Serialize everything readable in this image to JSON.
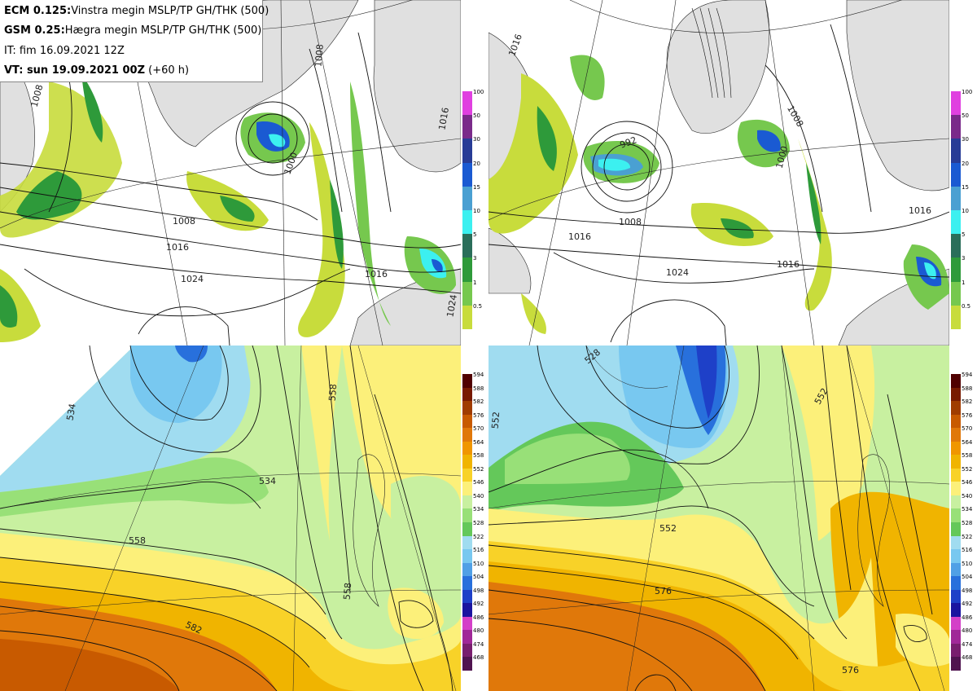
{
  "legend": {
    "line1_model": "ECM 0.125:",
    "line1_text": "Vinstra megin MSLP/TP GH/THK (500)",
    "line2_model": "GSM 0.25:",
    "line2_text": "Hægra megin MSLP/TP GH/THK (500)",
    "line3_text": "IT: fim 16.09.2021 12Z",
    "line4_bold": "VT: sun 19.09.2021 00Z",
    "line4_text": "(+60 h)"
  },
  "colorbars": {
    "precip": {
      "ticks": [
        "100",
        "50",
        "30",
        "20",
        "15",
        "10",
        "5",
        "3",
        "1",
        "0.5"
      ],
      "colors": [
        "#e040e0",
        "#7a2a8a",
        "#283c96",
        "#1a5ad2",
        "#4aa0d2",
        "#3cf0f0",
        "#2a6e5a",
        "#2e9a3a",
        "#76c84e",
        "#c8dc3c"
      ]
    },
    "thickness": {
      "ticks": [
        "594",
        "588",
        "582",
        "576",
        "570",
        "564",
        "558",
        "552",
        "546",
        "540",
        "534",
        "528",
        "522",
        "516",
        "510",
        "504",
        "498",
        "492",
        "486",
        "480",
        "474",
        "468"
      ],
      "colors": [
        "#500000",
        "#781a00",
        "#a03c00",
        "#c85a00",
        "#e0780a",
        "#f09600",
        "#f0b400",
        "#f8d228",
        "#fcf07a",
        "#c8f0a0",
        "#98e078",
        "#64c85a",
        "#a0dcf0",
        "#78c8f0",
        "#50a0e6",
        "#2870dc",
        "#1e40c8",
        "#1a14a0",
        "#d440c8",
        "#a02898",
        "#781e6e",
        "#501450"
      ]
    }
  },
  "maps": {
    "top_left": {
      "isobar_labels": [
        "1008",
        "1016",
        "1024",
        "1000",
        "1016",
        "1024",
        "1008",
        "1016",
        "1008"
      ]
    },
    "top_right": {
      "isobar_labels": [
        "992",
        "1008",
        "1016",
        "1024",
        "1008",
        "1016",
        "1016",
        "1000",
        "1016"
      ]
    },
    "bottom_left": {
      "contour_labels": [
        "534",
        "558",
        "558",
        "582",
        "534",
        "558"
      ]
    },
    "bottom_right": {
      "contour_labels": [
        "552",
        "528",
        "552",
        "576",
        "576",
        "552"
      ]
    }
  }
}
